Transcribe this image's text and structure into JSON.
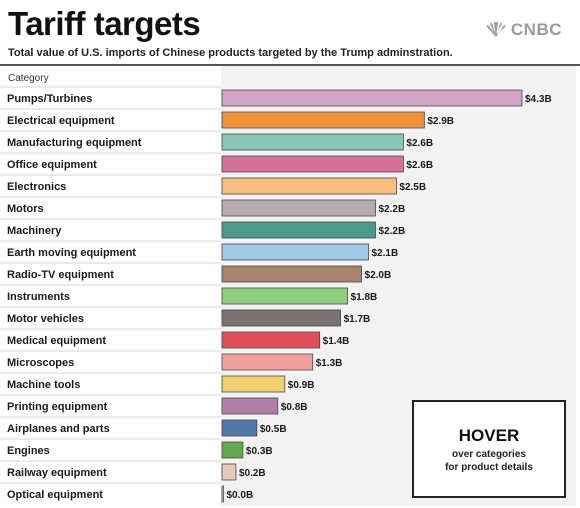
{
  "header": {
    "title": "Tariff targets",
    "subtitle": "Total value of U.S. imports of Chinese products targeted by the Trump adminstration.",
    "logo_text": "CNBC",
    "logo_icon": "peacock-icon"
  },
  "hover_box": {
    "title": "HOVER",
    "subtitle": "over categories\nfor product details"
  },
  "chart_data": {
    "type": "bar",
    "orientation": "horizontal",
    "title": "Tariff targets",
    "subtitle": "Total value of U.S. imports of Chinese products targeted by the Trump adminstration.",
    "category_header": "Category",
    "categories": [
      "Pumps/Turbines",
      "Electrical equipment",
      "Manufacturing equipment",
      "Office equipment",
      "Electronics",
      "Motors",
      "Machinery",
      "Earth moving equipment",
      "Radio-TV equipment",
      "Instruments",
      "Motor vehicles",
      "Medical equipment",
      "Microscopes",
      "Machine tools",
      "Printing equipment",
      "Airplanes and parts",
      "Engines",
      "Railway equipment",
      "Optical equipment"
    ],
    "values": [
      4.3,
      2.9,
      2.6,
      2.6,
      2.5,
      2.2,
      2.2,
      2.1,
      2.0,
      1.8,
      1.7,
      1.4,
      1.3,
      0.9,
      0.8,
      0.5,
      0.3,
      0.2,
      0.0
    ],
    "value_labels": [
      "$4.3B",
      "$2.9B",
      "$2.6B",
      "$2.6B",
      "$2.5B",
      "$2.2B",
      "$2.2B",
      "$2.1B",
      "$2.0B",
      "$1.8B",
      "$1.7B",
      "$1.4B",
      "$1.3B",
      "$0.9B",
      "$0.8B",
      "$0.5B",
      "$0.3B",
      "$0.2B",
      "$0.0B"
    ],
    "colors": [
      "#d1a3c4",
      "#f0923a",
      "#88c6b6",
      "#d36f98",
      "#f7bd7e",
      "#b6aeae",
      "#4b9a8e",
      "#9fc7e6",
      "#a8826a",
      "#8fcc7c",
      "#7b7272",
      "#e04f56",
      "#f09f9f",
      "#f1cf6f",
      "#b07ea6",
      "#4f78a8",
      "#62a84c",
      "#e2c9b8",
      "#c7c7c7"
    ],
    "xlim": [
      0,
      4.3
    ],
    "grid": false,
    "legend": "none"
  }
}
